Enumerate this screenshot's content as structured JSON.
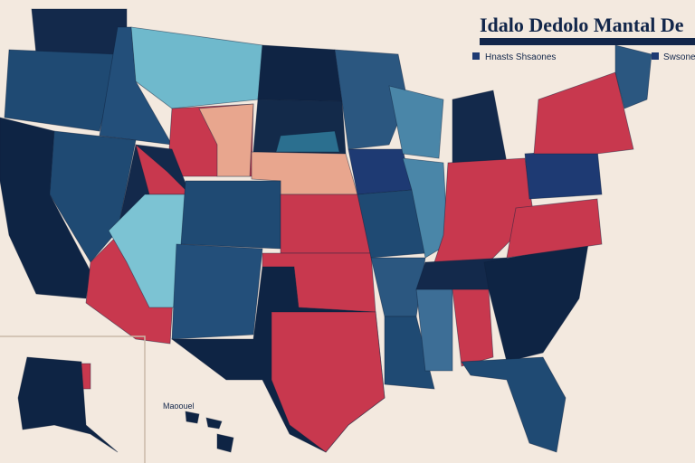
{
  "header": {
    "title": "Idalo Dedolo Mantal De"
  },
  "legend": {
    "items": [
      "Hnasts Shsaones",
      "Swsones"
    ]
  },
  "inset": {
    "label": "Maoouel"
  }
}
